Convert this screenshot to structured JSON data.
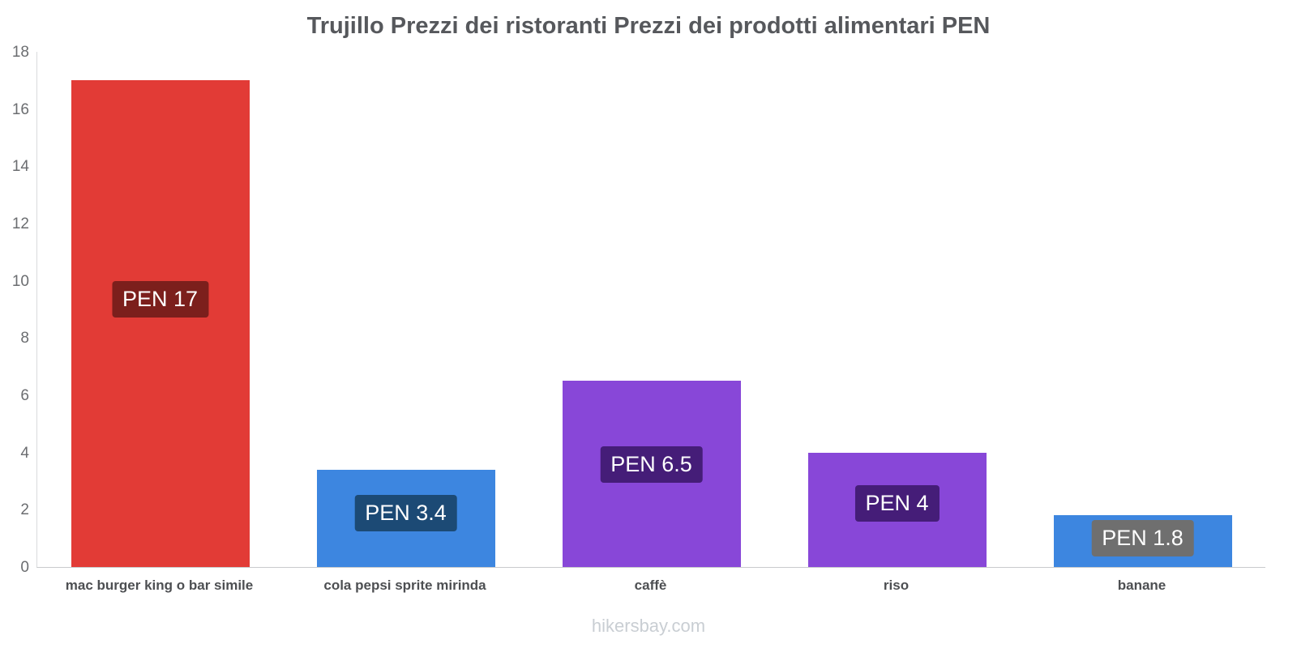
{
  "title": "Trujillo Prezzi dei ristoranti Prezzi dei prodotti alimentari PEN",
  "footer": "hikersbay.com",
  "chart_data": {
    "type": "bar",
    "title": "Trujillo Prezzi dei ristoranti Prezzi dei prodotti alimentari PEN",
    "categories": [
      "mac burger king o bar simile",
      "cola pepsi sprite mirinda",
      "caffè",
      "riso",
      "banane"
    ],
    "values": [
      17,
      3.4,
      6.5,
      4,
      1.8
    ],
    "data_labels": [
      "PEN 17",
      "PEN 3.4",
      "PEN 6.5",
      "PEN 4",
      "PEN 1.8"
    ],
    "bar_colors": [
      "#e23b36",
      "#3d86e0",
      "#8847d8",
      "#8847d8",
      "#3d86e0"
    ],
    "label_bg_colors": [
      "#7c1f1c",
      "#1c4a75",
      "#451d78",
      "#451d78",
      "#6f6f6f"
    ],
    "xlabel": "",
    "ylabel": "",
    "ylim": [
      0,
      18
    ],
    "yticks": [
      0,
      2,
      4,
      6,
      8,
      10,
      12,
      14,
      16,
      18
    ],
    "grid": false,
    "legend": false,
    "currency": "PEN"
  }
}
